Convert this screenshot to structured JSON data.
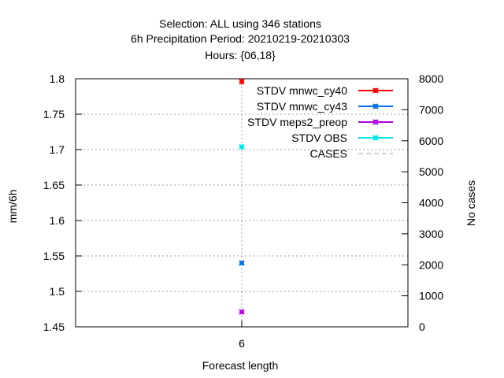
{
  "titles": {
    "line1": "Selection: ALL using   346 stations",
    "line2": "6h Precipitation   Period: 20210219-20210303",
    "line3": "Hours: {06,18}"
  },
  "chart_data": {
    "type": "scatter",
    "title": "Selection: ALL using   346 stations",
    "xlabel": "Forecast length",
    "ylabel": "mm/6h",
    "y2label": "No cases",
    "x": [
      6
    ],
    "x_ticks": [
      "6"
    ],
    "ylim": [
      1.45,
      1.8
    ],
    "y_ticks": [
      "1.45",
      "1.5",
      "1.55",
      "1.6",
      "1.65",
      "1.7",
      "1.75",
      "1.8"
    ],
    "y2lim": [
      0,
      8000
    ],
    "y2_ticks": [
      "0",
      "1000",
      "2000",
      "3000",
      "4000",
      "5000",
      "6000",
      "7000",
      "8000"
    ],
    "grid": true,
    "legend_position": "top-right",
    "series": [
      {
        "name": "STDV mnwc_cy40",
        "values": [
          1.796
        ],
        "color": "#ff0000",
        "style": "line-points",
        "axis": "left"
      },
      {
        "name": "STDV mnwc_cy43",
        "values": [
          1.54
        ],
        "color": "#0072e0",
        "style": "line-points",
        "axis": "left"
      },
      {
        "name": "STDV meps2_preop",
        "values": [
          1.471
        ],
        "color": "#b000e0",
        "style": "line-points",
        "axis": "left"
      },
      {
        "name": "STDV OBS",
        "values": [
          1.704
        ],
        "color": "#00e8e8",
        "style": "line-points",
        "axis": "left"
      },
      {
        "name": "CASES",
        "values": [
          5800
        ],
        "color": "#a0a0a0",
        "style": "dashed",
        "axis": "right"
      }
    ]
  }
}
